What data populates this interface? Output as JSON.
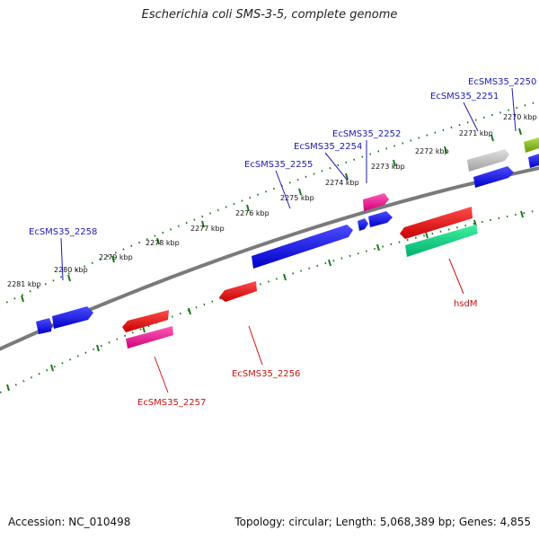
{
  "title": "Escherichia coli SMS-3-5, complete genome",
  "footer": {
    "accession": "Accession: NC_010498",
    "summary": "Topology: circular; Length: 5,068,389 bp; Genes: 4,855"
  },
  "colors": {
    "backbone": "#808080",
    "tick": "#1a7a1a",
    "blue_gene": "#1010e0",
    "red_gene": "#e01010",
    "magenta_gene": "#ff1493",
    "green_gene": "#00d080",
    "gray_gene": "#c0c0c0",
    "olive_gene": "#88bb22",
    "label_blue": "#1a1ab8",
    "label_red": "#d01010"
  },
  "tick_labels": [
    {
      "text": "2281 kbp"
    },
    {
      "text": "2280 kbp"
    },
    {
      "text": "2279 kbp"
    },
    {
      "text": "2278 kbp"
    },
    {
      "text": "2277 kbp"
    },
    {
      "text": "2276 kbp"
    },
    {
      "text": "2275 kbp"
    },
    {
      "text": "2274 kbp"
    },
    {
      "text": "2273 kbp"
    },
    {
      "text": "2272 kbp"
    },
    {
      "text": "2271 kbp"
    },
    {
      "text": "2270 kbp"
    }
  ],
  "gene_labels": [
    {
      "text": "EcSMS35_2250",
      "strand": "forward"
    },
    {
      "text": "EcSMS35_2251",
      "strand": "forward"
    },
    {
      "text": "EcSMS35_2252",
      "strand": "forward"
    },
    {
      "text": "EcSMS35_2254",
      "strand": "forward"
    },
    {
      "text": "EcSMS35_2255",
      "strand": "forward"
    },
    {
      "text": "EcSMS35_2258",
      "strand": "forward"
    },
    {
      "text": "hsdM",
      "strand": "reverse"
    },
    {
      "text": "EcSMS35_2256",
      "strand": "reverse"
    },
    {
      "text": "EcSMS35_2257",
      "strand": "reverse"
    }
  ]
}
